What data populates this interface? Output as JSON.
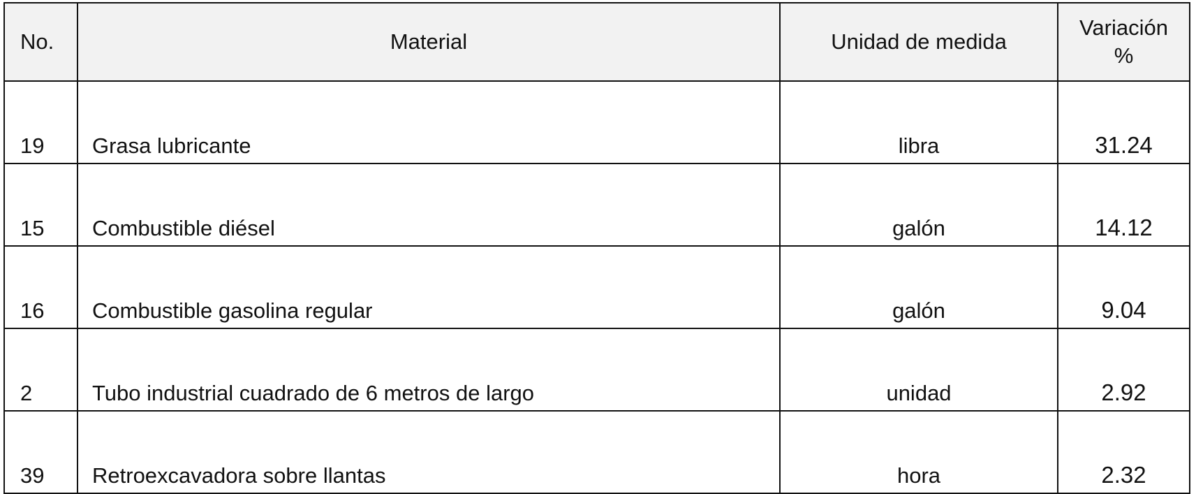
{
  "table": {
    "headers": {
      "no": "No.",
      "material": "Material",
      "unit": "Unidad de medida",
      "variation_line1": "Variación",
      "variation_line2": "%"
    },
    "rows": [
      {
        "no": "19",
        "material": "Grasa lubricante",
        "unit": "libra",
        "variation": "31.24"
      },
      {
        "no": "15",
        "material": "Combustible diésel",
        "unit": "galón",
        "variation": "14.12"
      },
      {
        "no": "16",
        "material": "Combustible gasolina regular",
        "unit": "galón",
        "variation": "9.04"
      },
      {
        "no": "2",
        "material": "Tubo industrial cuadrado de 6 metros de largo",
        "unit": "unidad",
        "variation": "2.92"
      },
      {
        "no": "39",
        "material": "Retroexcavadora sobre llantas",
        "unit": "hora",
        "variation": "2.32"
      }
    ],
    "header_background": "#f2f2f2"
  }
}
